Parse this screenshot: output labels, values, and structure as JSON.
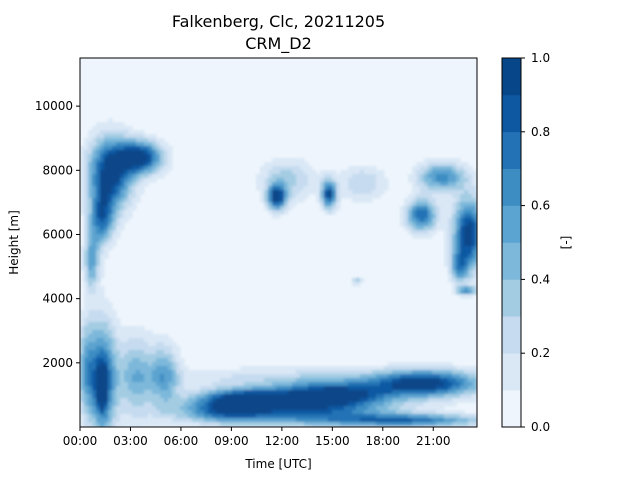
{
  "chart_data": {
    "type": "heatmap",
    "title": "Falkenberg, Clc, 20211205",
    "subtitle": "CRM_D2",
    "xlabel": "Time [UTC]",
    "ylabel": "Height [m]",
    "colorbar_label": "[-]",
    "x_ticks": [
      "00:00",
      "03:00",
      "06:00",
      "09:00",
      "12:00",
      "15:00",
      "18:00",
      "21:00"
    ],
    "x_tick_hours": [
      0,
      3,
      6,
      9,
      12,
      15,
      18,
      21
    ],
    "xlim_hours": [
      0,
      23.6
    ],
    "y_ticks": [
      2000,
      4000,
      6000,
      8000,
      10000
    ],
    "ylim": [
      0,
      11500
    ],
    "colorbar_ticks": [
      0.0,
      0.2,
      0.4,
      0.6,
      0.8,
      1.0
    ],
    "colorbar_tick_labels": [
      "0.0",
      "0.2",
      "0.4",
      "0.6",
      "0.8",
      "1.0"
    ],
    "levels": [
      0.0,
      0.1,
      0.2,
      0.3,
      0.4,
      0.5,
      0.6,
      0.7,
      0.8,
      0.9,
      1.0
    ],
    "colormap": "Blues",
    "level_colors": [
      "#eef5fc",
      "#dae8f6",
      "#c6dbef",
      "#a3cce3",
      "#7db8da",
      "#5ba3d0",
      "#3d8dc3",
      "#2272b5",
      "#0e58a2",
      "#08468a"
    ],
    "cloud_regions": [
      {
        "feature": "upper cloud block",
        "t_start": 0.3,
        "t_end": 6.0,
        "z_bottom": 5800,
        "z_top": 9500,
        "max_fraction": 1.0
      },
      {
        "feature": "low cloud column",
        "t_start": 0.0,
        "t_end": 4.5,
        "z_bottom": 0,
        "z_top": 3800,
        "max_fraction": 0.9
      },
      {
        "feature": "mid cloud shelf",
        "t_start": 4.0,
        "t_end": 5.8,
        "z_bottom": 0,
        "z_top": 2700,
        "max_fraction": 0.6
      },
      {
        "feature": "boundary layer cloud",
        "t_start": 5.8,
        "t_end": 23.6,
        "z_bottom": 0,
        "z_top": 1900,
        "max_fraction": 1.0
      },
      {
        "feature": "upper patch",
        "t_start": 11.0,
        "t_end": 12.5,
        "z_bottom": 6500,
        "z_top": 7800,
        "max_fraction": 0.9
      },
      {
        "feature": "upper patch",
        "t_start": 14.3,
        "t_end": 15.3,
        "z_bottom": 6600,
        "z_top": 7900,
        "max_fraction": 0.9
      },
      {
        "feature": "upper band",
        "t_start": 9.8,
        "t_end": 23.6,
        "z_bottom": 6000,
        "z_top": 8500,
        "max_fraction": 0.4
      },
      {
        "feature": "upper right cloud",
        "t_start": 19.0,
        "t_end": 23.6,
        "z_bottom": 4700,
        "z_top": 8500,
        "max_fraction": 1.0
      }
    ]
  }
}
